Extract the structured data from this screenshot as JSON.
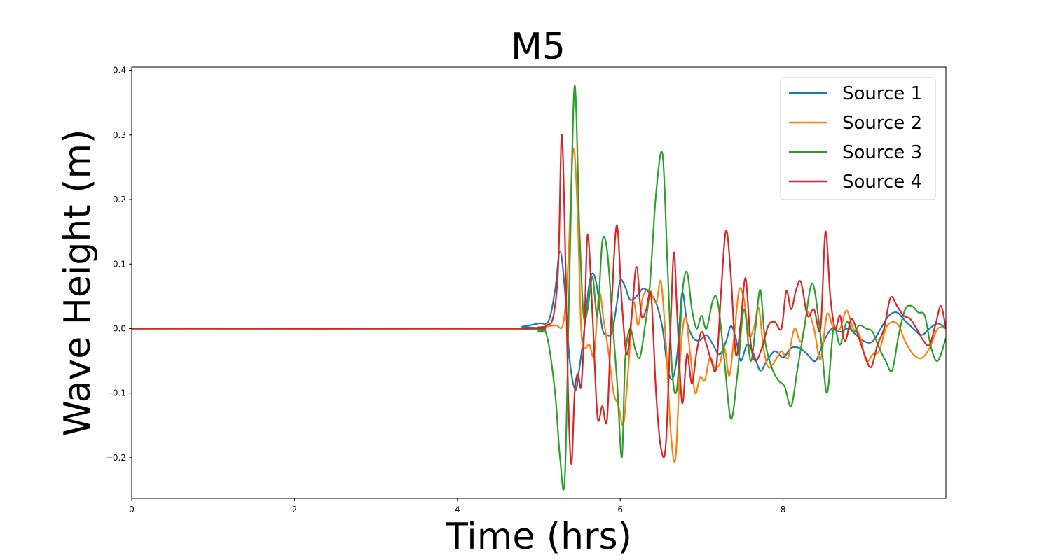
{
  "chart_data": {
    "type": "line",
    "title": "M5",
    "xlabel": "Time (hrs)",
    "ylabel": "Wave Height (m)",
    "xlim": [
      0,
      10
    ],
    "ylim": [
      -0.263,
      0.405
    ],
    "xticks": [
      0,
      2,
      4,
      6,
      8
    ],
    "xtick_labels": [
      "0",
      "2",
      "4",
      "6",
      "8"
    ],
    "yticks": [
      -0.2,
      -0.1,
      0.0,
      0.1,
      0.2,
      0.3,
      0.4
    ],
    "ytick_labels": [
      "−0.2",
      "−0.1",
      "0.0",
      "0.1",
      "0.2",
      "0.3",
      "0.4"
    ],
    "grid": false,
    "legend_position": "top-right",
    "series": [
      {
        "name": "Source 1",
        "color": "#1f77b4",
        "x": [
          0,
          4.6,
          4.8,
          5.0,
          5.12,
          5.2,
          5.26,
          5.32,
          5.38,
          5.45,
          5.5,
          5.56,
          5.62,
          5.67,
          5.72,
          5.78,
          5.84,
          5.9,
          5.96,
          6.0,
          6.06,
          6.12,
          6.2,
          6.28,
          6.36,
          6.44,
          6.52,
          6.58,
          6.64,
          6.7,
          6.76,
          6.82,
          6.9,
          6.98,
          7.06,
          7.14,
          7.22,
          7.3,
          7.36,
          7.42,
          7.48,
          7.56,
          7.64,
          7.72,
          7.8,
          7.9,
          8.0,
          8.1,
          8.2,
          8.3,
          8.4,
          8.5,
          8.6,
          8.7,
          8.8,
          8.9,
          9.0,
          9.1,
          9.2,
          9.3,
          9.4,
          9.5,
          9.6,
          9.7,
          9.8,
          9.9,
          10.0
        ],
        "y": [
          0.0,
          0.0,
          0.003,
          0.008,
          0.012,
          0.06,
          0.12,
          0.06,
          -0.05,
          -0.095,
          -0.06,
          0.0,
          0.07,
          0.085,
          0.06,
          0.0,
          -0.01,
          -0.005,
          0.04,
          0.075,
          0.065,
          0.045,
          0.05,
          0.062,
          0.055,
          0.04,
          0.0,
          -0.06,
          -0.078,
          -0.04,
          0.055,
          0.01,
          -0.015,
          -0.018,
          -0.01,
          -0.025,
          -0.04,
          -0.02,
          0.004,
          -0.015,
          -0.05,
          -0.025,
          -0.04,
          -0.065,
          -0.05,
          -0.035,
          -0.045,
          -0.03,
          -0.03,
          -0.04,
          -0.05,
          -0.02,
          0.0,
          -0.005,
          0.0,
          -0.01,
          -0.02,
          -0.02,
          0.0,
          0.02,
          0.025,
          0.012,
          0.0,
          -0.01,
          0.0,
          0.008,
          0.0
        ]
      },
      {
        "name": "Source 2",
        "color": "#ff7f0e",
        "x": [
          0,
          4.6,
          5.0,
          5.2,
          5.3,
          5.36,
          5.42,
          5.47,
          5.52,
          5.56,
          5.62,
          5.68,
          5.74,
          5.8,
          5.86,
          5.92,
          5.98,
          6.04,
          6.1,
          6.16,
          6.22,
          6.28,
          6.36,
          6.44,
          6.5,
          6.56,
          6.62,
          6.68,
          6.74,
          6.8,
          6.86,
          6.92,
          6.98,
          7.04,
          7.1,
          7.16,
          7.22,
          7.28,
          7.34,
          7.4,
          7.46,
          7.52,
          7.58,
          7.64,
          7.7,
          7.76,
          7.82,
          7.9,
          7.98,
          8.06,
          8.14,
          8.22,
          8.3,
          8.38,
          8.46,
          8.54,
          8.62,
          8.7,
          8.78,
          8.86,
          8.94,
          9.02,
          9.1,
          9.18,
          9.26,
          9.34,
          9.42,
          9.5,
          9.6,
          9.7,
          9.8,
          9.9,
          10.0
        ],
        "y": [
          0.0,
          0.0,
          0.002,
          0.005,
          0.008,
          0.1,
          0.276,
          0.2,
          0.0,
          -0.03,
          -0.025,
          -0.04,
          0.055,
          0.01,
          -0.04,
          -0.1,
          -0.12,
          -0.148,
          -0.06,
          0.04,
          0.005,
          0.05,
          0.06,
          0.04,
          0.073,
          -0.02,
          -0.16,
          -0.2,
          -0.04,
          0.018,
          -0.04,
          -0.1,
          -0.075,
          -0.08,
          -0.045,
          -0.06,
          -0.055,
          -0.03,
          -0.073,
          -0.01,
          0.06,
          0.045,
          -0.01,
          0.0,
          0.032,
          -0.03,
          -0.06,
          -0.05,
          -0.035,
          -0.045,
          0.0,
          -0.02,
          0.025,
          0.0,
          -0.048,
          0.022,
          0.0,
          0.0,
          0.028,
          0.0,
          -0.01,
          -0.05,
          -0.04,
          -0.035,
          0.0,
          0.01,
          0.005,
          -0.02,
          -0.04,
          -0.046,
          -0.03,
          0.0,
          0.0
        ]
      },
      {
        "name": "Source 3",
        "color": "#2ca02c",
        "x": [
          0,
          4.6,
          5.0,
          5.1,
          5.2,
          5.26,
          5.32,
          5.38,
          5.44,
          5.5,
          5.55,
          5.6,
          5.66,
          5.72,
          5.78,
          5.84,
          5.9,
          5.96,
          6.02,
          6.06,
          6.12,
          6.18,
          6.24,
          6.3,
          6.36,
          6.44,
          6.52,
          6.58,
          6.64,
          6.7,
          6.76,
          6.82,
          6.88,
          6.94,
          7.0,
          7.06,
          7.14,
          7.2,
          7.28,
          7.36,
          7.44,
          7.52,
          7.6,
          7.66,
          7.72,
          7.78,
          7.86,
          7.94,
          8.02,
          8.1,
          8.18,
          8.26,
          8.36,
          8.46,
          8.54,
          8.62,
          8.7,
          8.78,
          8.86,
          8.94,
          9.02,
          9.1,
          9.18,
          9.26,
          9.34,
          9.42,
          9.5,
          9.58,
          9.66,
          9.74,
          9.82,
          9.9,
          10.0
        ],
        "y": [
          0.0,
          0.0,
          -0.005,
          -0.012,
          -0.1,
          -0.2,
          -0.23,
          0.1,
          0.376,
          0.15,
          0.02,
          0.03,
          0.08,
          0.02,
          0.135,
          0.12,
          0.02,
          -0.08,
          -0.2,
          -0.05,
          0.0,
          -0.03,
          -0.045,
          0.0,
          0.06,
          0.21,
          0.27,
          0.1,
          -0.07,
          -0.09,
          0.05,
          0.088,
          0.03,
          0.0,
          0.02,
          0.0,
          0.045,
          0.04,
          -0.05,
          -0.14,
          -0.07,
          0.03,
          -0.05,
          0.0,
          0.06,
          -0.02,
          -0.06,
          -0.08,
          -0.09,
          -0.12,
          -0.06,
          0.0,
          0.07,
          -0.01,
          -0.1,
          0.0,
          -0.025,
          0.01,
          -0.005,
          0.005,
          0.0,
          -0.005,
          -0.03,
          -0.05,
          -0.065,
          -0.01,
          0.03,
          0.035,
          0.025,
          0.02,
          -0.03,
          -0.05,
          -0.015
        ]
      },
      {
        "name": "Source 4",
        "color": "#d62728",
        "x": [
          0,
          4.6,
          5.0,
          5.1,
          5.18,
          5.24,
          5.28,
          5.32,
          5.36,
          5.4,
          5.44,
          5.48,
          5.52,
          5.56,
          5.6,
          5.66,
          5.72,
          5.78,
          5.84,
          5.9,
          5.96,
          6.02,
          6.08,
          6.14,
          6.2,
          6.26,
          6.32,
          6.38,
          6.44,
          6.5,
          6.56,
          6.62,
          6.66,
          6.7,
          6.76,
          6.82,
          6.88,
          6.94,
          7.0,
          7.06,
          7.12,
          7.18,
          7.24,
          7.3,
          7.36,
          7.42,
          7.48,
          7.54,
          7.6,
          7.66,
          7.74,
          7.82,
          7.9,
          7.98,
          8.04,
          8.1,
          8.16,
          8.22,
          8.3,
          8.38,
          8.46,
          8.52,
          8.58,
          8.64,
          8.7,
          8.76,
          8.84,
          8.92,
          9.0,
          9.08,
          9.16,
          9.24,
          9.32,
          9.4,
          9.48,
          9.56,
          9.64,
          9.72,
          9.8,
          9.88,
          9.94,
          10.0
        ],
        "y": [
          0.0,
          0.0,
          0.002,
          0.005,
          0.02,
          0.1,
          0.3,
          0.15,
          -0.1,
          -0.21,
          -0.1,
          -0.07,
          -0.09,
          0.0,
          0.146,
          0.02,
          -0.136,
          -0.12,
          -0.138,
          0.05,
          0.16,
          0.04,
          -0.04,
          0.02,
          0.096,
          0.02,
          0.03,
          0.05,
          -0.1,
          -0.185,
          -0.18,
          0.01,
          0.118,
          0.02,
          -0.115,
          -0.04,
          -0.085,
          -0.035,
          -0.005,
          -0.025,
          -0.05,
          -0.06,
          0.06,
          0.152,
          0.08,
          -0.04,
          0.01,
          0.078,
          -0.02,
          -0.05,
          -0.03,
          0.005,
          0.01,
          0.0,
          0.058,
          0.03,
          0.06,
          0.072,
          0.02,
          0.03,
          0.0,
          0.15,
          0.05,
          0.0,
          0.02,
          -0.02,
          0.015,
          -0.01,
          -0.04,
          -0.06,
          -0.025,
          0.0,
          0.048,
          0.035,
          0.02,
          0.015,
          0.0,
          -0.018,
          -0.025,
          0.01,
          0.035,
          0.0
        ]
      }
    ]
  }
}
